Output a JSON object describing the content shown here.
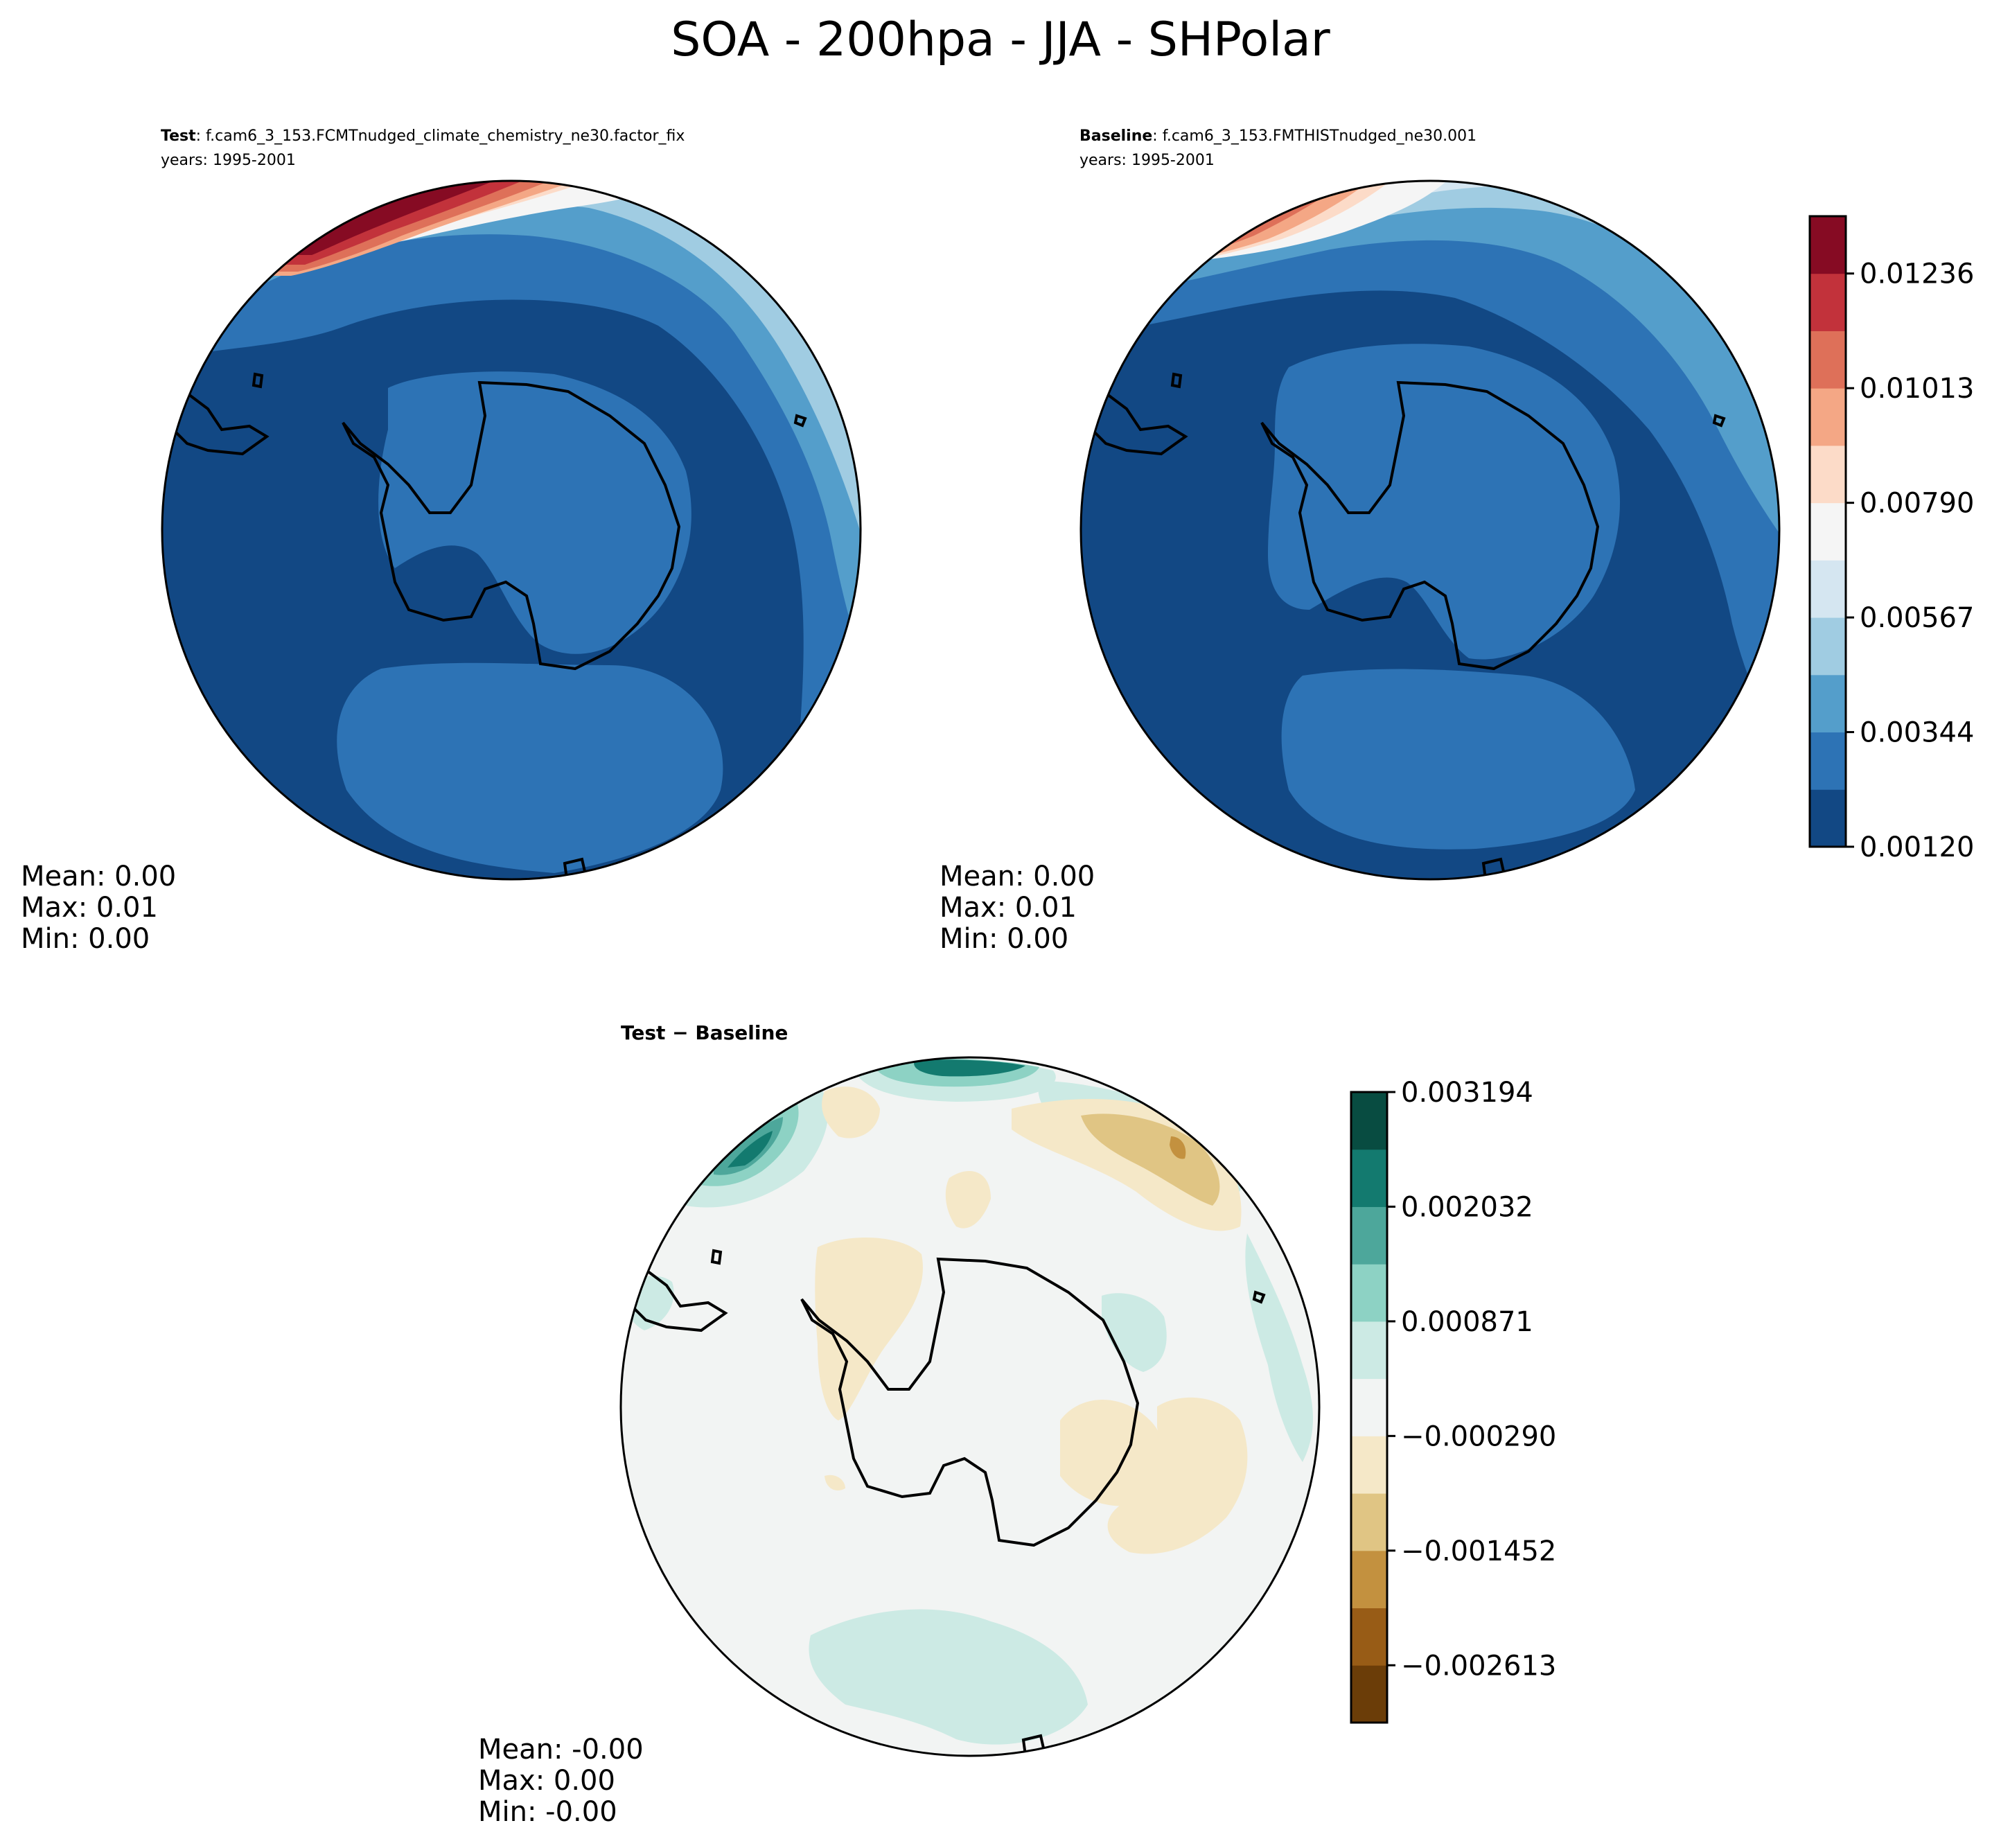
{
  "figure": {
    "title": "SOA - 200hpa - JJA - SHPolar"
  },
  "chart_data": [
    {
      "type": "heatmap",
      "id": "test",
      "title_bold": "Test",
      "title_rest": ": f.cam6_3_153.FCMTnudged_climate_chemistry_ne30.factor_fix",
      "subtitle": "years: 1995-2001",
      "projection": "south polar stereographic",
      "stats": [
        "Mean:  0.00",
        "Max:  0.01",
        "Min:  0.00"
      ]
    },
    {
      "type": "heatmap",
      "id": "baseline",
      "title_bold": "Baseline",
      "title_rest": ": f.cam6_3_153.FMTHISTnudged_ne30.001",
      "subtitle": "years: 1995-2001",
      "projection": "south polar stereographic",
      "stats": [
        "Mean:  0.00",
        "Max:  0.01",
        "Min:  0.00"
      ]
    },
    {
      "type": "heatmap",
      "id": "diff",
      "title_bold": "Test − Baseline",
      "projection": "south polar stereographic",
      "stats": [
        "Mean: -0.00",
        "Max:  0.00",
        "Min: -0.00"
      ]
    }
  ],
  "colorbars": {
    "main": {
      "colors": [
        "#124884",
        "#2d73b5",
        "#549ecb",
        "#a0cce2",
        "#d5e6f1",
        "#f5f5f5",
        "#fcdbc8",
        "#f4a785",
        "#de7059",
        "#c2323b",
        "#860b23"
      ],
      "tick_labels": [
        "0.00120",
        "0.00344",
        "0.00567",
        "0.00790",
        "0.01013",
        "0.01236"
      ]
    },
    "diff": {
      "colors": [
        "#6b3d08",
        "#985c16",
        "#c3913f",
        "#e0c584",
        "#f5e8c8",
        "#f2f4f3",
        "#cceae4",
        "#8dd2c4",
        "#4da79b",
        "#137a6f",
        "#084c41"
      ],
      "tick_labels": [
        "−0.002613",
        "−0.001452",
        "−0.000290",
        "0.000871",
        "0.002032",
        "0.003194"
      ]
    }
  }
}
